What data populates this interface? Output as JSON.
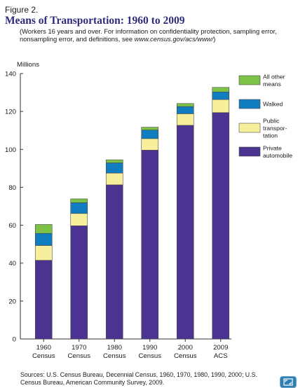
{
  "figure_label": "Figure 2.",
  "title": "Means of Transportation: 1960 to 2009",
  "subtitle_main": "(Workers 16 years and over. For information on confidentiality protection, sampling error, nonsampling error, and definitions, see ",
  "subtitle_url": "www.census.gov/acs/www/",
  "subtitle_end": ")",
  "sources": "Sources: U.S. Census Bureau, Decennial Census, 1960, 1970, 1980, 1990, 2000; U.S. Census Bureau, American Community Survey, 2009.",
  "corner_icon": "expand-icon",
  "chart_data": {
    "type": "bar",
    "stacked": true,
    "ylabel": "Millions",
    "ylim": [
      0,
      140
    ],
    "yticks": [
      0,
      20,
      40,
      60,
      80,
      100,
      120,
      140
    ],
    "categories": [
      {
        "line1": "1960",
        "line2": "Census"
      },
      {
        "line1": "1970",
        "line2": "Census"
      },
      {
        "line1": "1980",
        "line2": "Census"
      },
      {
        "line1": "1990",
        "line2": "Census"
      },
      {
        "line1": "2000",
        "line2": "Census"
      },
      {
        "line1": "2009",
        "line2": "ACS"
      }
    ],
    "series": [
      {
        "name": "Private automobile",
        "legend_lines": [
          "Private",
          "automobile"
        ],
        "color": "#4b3391",
        "values": [
          41.5,
          59.7,
          81.3,
          99.6,
          112.7,
          119.4
        ]
      },
      {
        "name": "Public transportation",
        "legend_lines": [
          "Public",
          "transpor-",
          "tation"
        ],
        "color": "#f7ef9c",
        "values": [
          7.8,
          6.5,
          6.2,
          6.1,
          6.1,
          6.9
        ]
      },
      {
        "name": "Walked",
        "legend_lines": [
          "Walked"
        ],
        "color": "#0f7dc0",
        "values": [
          6.4,
          5.7,
          5.4,
          4.5,
          3.8,
          4.0
        ]
      },
      {
        "name": "All other means",
        "legend_lines": [
          "All other",
          "means"
        ],
        "color": "#7cc247",
        "values": [
          4.7,
          2.0,
          1.6,
          1.5,
          1.6,
          2.4
        ]
      }
    ],
    "legend_position": "top-right",
    "grid": false
  }
}
